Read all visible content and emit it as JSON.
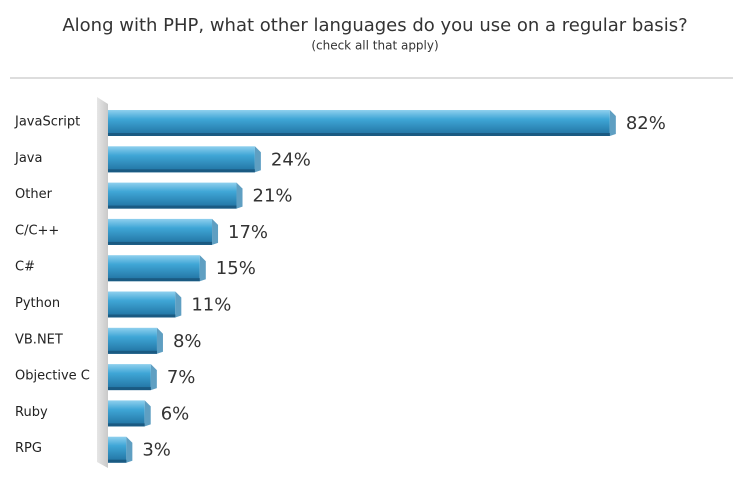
{
  "chart_data": {
    "type": "bar",
    "orientation": "horizontal",
    "title": "Along with PHP, what other languages do you use on a regular basis?",
    "subtitle": "(check all that apply)",
    "categories": [
      "JavaScript",
      "Java",
      "Other",
      "C/C++",
      "C#",
      "Python",
      "VB.NET",
      "Objective C",
      "Ruby",
      "RPG"
    ],
    "values": [
      82,
      24,
      21,
      17,
      15,
      11,
      8,
      7,
      6,
      3
    ],
    "value_labels": [
      "82%",
      "24%",
      "21%",
      "17%",
      "15%",
      "11%",
      "8%",
      "7%",
      "6%",
      "3%"
    ],
    "color": "#2f8fc4"
  }
}
